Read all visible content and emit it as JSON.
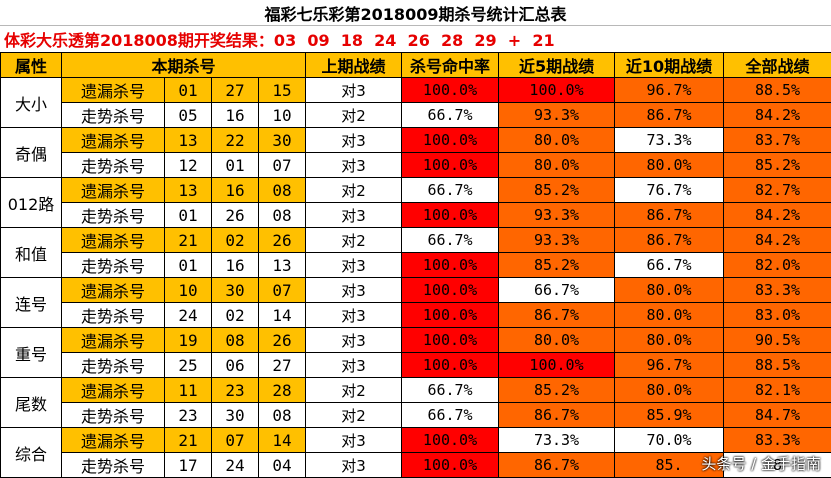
{
  "title": "福彩七乐彩第2018009期杀号统计汇总表",
  "draw_result": "体彩大乐透第2018008期开奖结果：03  09  18  24  26  28  29  +  21",
  "headers": [
    "属性",
    "本期杀号",
    "上期战绩",
    "杀号命中率",
    "近5期战绩",
    "近10期战绩",
    "全部战绩"
  ],
  "groups": [
    {
      "attr": "大小",
      "rows": [
        {
          "type": "遗漏杀号",
          "nums": [
            "01",
            "27",
            "15"
          ],
          "prev": "对3",
          "hit": "100.0%",
          "r5": "100.0%",
          "r10": "96.7%",
          "all": "88.5%"
        },
        {
          "type": "走势杀号",
          "nums": [
            "05",
            "16",
            "10"
          ],
          "prev": "对2",
          "hit": "66.7%",
          "r5": "93.3%",
          "r10": "86.7%",
          "all": "84.2%"
        }
      ]
    },
    {
      "attr": "奇偶",
      "rows": [
        {
          "type": "遗漏杀号",
          "nums": [
            "13",
            "22",
            "30"
          ],
          "prev": "对3",
          "hit": "100.0%",
          "r5": "80.0%",
          "r10": "73.3%",
          "all": "83.7%"
        },
        {
          "type": "走势杀号",
          "nums": [
            "12",
            "01",
            "07"
          ],
          "prev": "对3",
          "hit": "100.0%",
          "r5": "80.0%",
          "r10": "80.0%",
          "all": "85.2%"
        }
      ]
    },
    {
      "attr": "012路",
      "rows": [
        {
          "type": "遗漏杀号",
          "nums": [
            "13",
            "16",
            "08"
          ],
          "prev": "对2",
          "hit": "66.7%",
          "r5": "85.2%",
          "r10": "76.7%",
          "all": "82.7%"
        },
        {
          "type": "走势杀号",
          "nums": [
            "01",
            "26",
            "08"
          ],
          "prev": "对3",
          "hit": "100.0%",
          "r5": "93.3%",
          "r10": "86.7%",
          "all": "84.2%"
        }
      ]
    },
    {
      "attr": "和值",
      "rows": [
        {
          "type": "遗漏杀号",
          "nums": [
            "21",
            "02",
            "26"
          ],
          "prev": "对2",
          "hit": "66.7%",
          "r5": "93.3%",
          "r10": "86.7%",
          "all": "84.2%"
        },
        {
          "type": "走势杀号",
          "nums": [
            "01",
            "16",
            "13"
          ],
          "prev": "对3",
          "hit": "100.0%",
          "r5": "85.2%",
          "r10": "66.7%",
          "all": "82.0%"
        }
      ]
    },
    {
      "attr": "连号",
      "rows": [
        {
          "type": "遗漏杀号",
          "nums": [
            "10",
            "30",
            "07"
          ],
          "prev": "对3",
          "hit": "100.0%",
          "r5": "66.7%",
          "r10": "80.0%",
          "all": "83.3%"
        },
        {
          "type": "走势杀号",
          "nums": [
            "24",
            "02",
            "14"
          ],
          "prev": "对3",
          "hit": "100.0%",
          "r5": "86.7%",
          "r10": "80.0%",
          "all": "83.0%"
        }
      ]
    },
    {
      "attr": "重号",
      "rows": [
        {
          "type": "遗漏杀号",
          "nums": [
            "19",
            "08",
            "26"
          ],
          "prev": "对3",
          "hit": "100.0%",
          "r5": "80.0%",
          "r10": "80.0%",
          "all": "90.5%"
        },
        {
          "type": "走势杀号",
          "nums": [
            "25",
            "06",
            "27"
          ],
          "prev": "对3",
          "hit": "100.0%",
          "r5": "100.0%",
          "r10": "96.7%",
          "all": "88.5%"
        }
      ]
    },
    {
      "attr": "尾数",
      "rows": [
        {
          "type": "遗漏杀号",
          "nums": [
            "11",
            "23",
            "28"
          ],
          "prev": "对2",
          "hit": "66.7%",
          "r5": "85.2%",
          "r10": "80.0%",
          "all": "82.1%"
        },
        {
          "type": "走势杀号",
          "nums": [
            "23",
            "30",
            "08"
          ],
          "prev": "对2",
          "hit": "66.7%",
          "r5": "86.7%",
          "r10": "85.9%",
          "all": "84.7%"
        }
      ]
    },
    {
      "attr": "综合",
      "rows": [
        {
          "type": "遗漏杀号",
          "nums": [
            "21",
            "07",
            "14"
          ],
          "prev": "对3",
          "hit": "100.0%",
          "r5": "73.3%",
          "r10": "70.0%",
          "all": "83.3%"
        },
        {
          "type": "走势杀号",
          "nums": [
            "17",
            "24",
            "04"
          ],
          "prev": "对3",
          "hit": "100.0%",
          "r5": "86.7%",
          "r10": "85.",
          "all": "8"
        }
      ]
    }
  ],
  "watermark": "头条号 / 金手指南",
  "colors": {
    "yellow": "#ffc000",
    "red": "#ff0000",
    "orange": "#ff6600",
    "white": "#ffffff",
    "title_red": "#e60000"
  }
}
